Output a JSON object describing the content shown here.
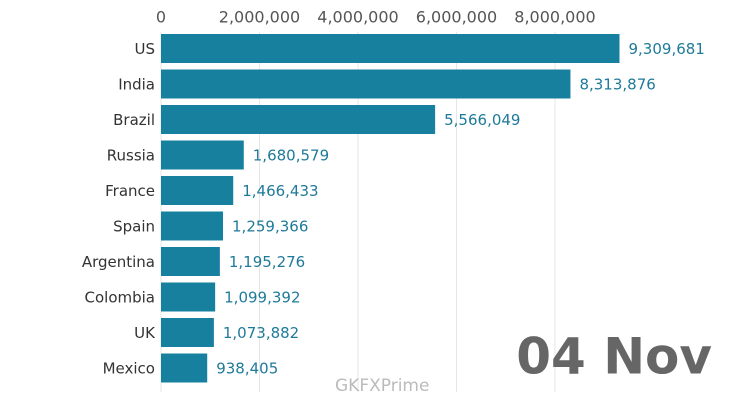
{
  "chart_data": {
    "type": "bar",
    "orientation": "horizontal",
    "categories": [
      "US",
      "India",
      "Brazil",
      "Russia",
      "France",
      "Spain",
      "Argentina",
      "Colombia",
      "UK",
      "Mexico"
    ],
    "values": [
      9309681,
      8313876,
      5566049,
      1680579,
      1466433,
      1259366,
      1195276,
      1099392,
      1073882,
      938405
    ],
    "value_labels": [
      "9,309,681",
      "8,313,876",
      "5,566,049",
      "1,680,579",
      "1,466,433",
      "1,259,366",
      "1,195,276",
      "1,099,392",
      "1,073,882",
      "938,405"
    ],
    "color": "#17809f",
    "xlim": [
      0,
      10000000
    ],
    "xticks": [
      0,
      {
        "value": 2000000,
        "label": "2,000,000"
      },
      {
        "value": 4000000,
        "label": "4,000,000"
      },
      {
        "value": 6000000,
        "label": "6,000,000"
      },
      {
        "value": 8000000,
        "label": "8,000,000"
      }
    ],
    "grid": true,
    "annotation": "04 Nov",
    "watermark": "GKFXPrime"
  }
}
